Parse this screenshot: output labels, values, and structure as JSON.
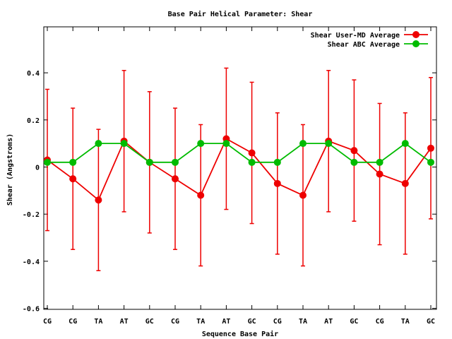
{
  "chart_data": {
    "type": "line",
    "title": "Base Pair Helical Parameter: Shear",
    "xlabel": "Sequence Base Pair",
    "ylabel": "Shear (Angstroms)",
    "categories": [
      "CG",
      "CG",
      "TA",
      "AT",
      "GC",
      "CG",
      "TA",
      "AT",
      "GC",
      "CG",
      "TA",
      "AT",
      "GC",
      "CG",
      "TA",
      "GC"
    ],
    "ylim": [
      -0.62,
      0.6
    ],
    "yticks": [
      {
        "v": 0.4,
        "label": "0.4"
      },
      {
        "v": 0.2,
        "label": "0.2"
      },
      {
        "v": 0,
        "label": "0"
      },
      {
        "v": -0.2,
        "label": "-0.2"
      },
      {
        "v": -0.4,
        "label": "-0.4"
      },
      {
        "v": -0.6,
        "label": "-0.6"
      }
    ],
    "grid": false,
    "legend_position": "top-right",
    "series": [
      {
        "name": "Shear User-MD Average",
        "color": "#ee0000",
        "values": [
          0.03,
          -0.05,
          -0.14,
          0.11,
          0.02,
          -0.05,
          -0.12,
          0.12,
          0.06,
          -0.07,
          -0.12,
          0.11,
          0.07,
          -0.03,
          -0.07,
          0.08
        ],
        "err_high": [
          0.33,
          0.25,
          0.16,
          0.41,
          0.32,
          0.25,
          0.18,
          0.42,
          0.36,
          0.23,
          0.18,
          0.41,
          0.37,
          0.27,
          0.23,
          0.38
        ],
        "err_low": [
          -0.27,
          -0.35,
          -0.44,
          -0.19,
          -0.28,
          -0.35,
          -0.42,
          -0.18,
          -0.24,
          -0.37,
          -0.42,
          -0.19,
          -0.23,
          -0.33,
          -0.37,
          -0.22
        ]
      },
      {
        "name": "Shear ABC Average",
        "color": "#00bb00",
        "values": [
          0.02,
          0.02,
          0.1,
          0.1,
          0.02,
          0.02,
          0.1,
          0.1,
          0.02,
          0.02,
          0.1,
          0.1,
          0.02,
          0.02,
          0.1,
          0.02
        ]
      }
    ]
  }
}
